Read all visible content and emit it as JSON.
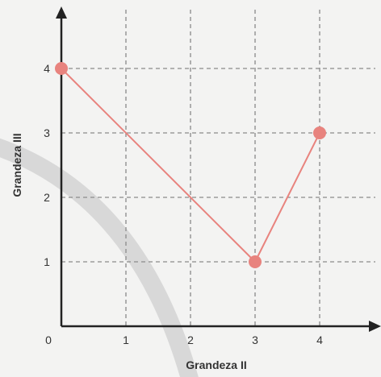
{
  "chart_data": {
    "type": "line",
    "xlabel": "Grandeza II",
    "ylabel": "Grandeza III",
    "origin_label": "0",
    "x_ticks": [
      "1",
      "2",
      "3",
      "4"
    ],
    "y_ticks": [
      "1",
      "2",
      "3",
      "4"
    ],
    "xlim": [
      0,
      5
    ],
    "ylim": [
      0,
      5
    ],
    "grid": true,
    "series": [
      {
        "x": [
          0,
          3,
          4
        ],
        "y": [
          4,
          1,
          3
        ],
        "color": "#e8837e"
      }
    ],
    "colors": {
      "line": "#e8837e",
      "marker": "#e8837e",
      "grid": "#8a8a8a",
      "axis": "#222222",
      "watermark_arc": "#cfcfcf"
    }
  }
}
